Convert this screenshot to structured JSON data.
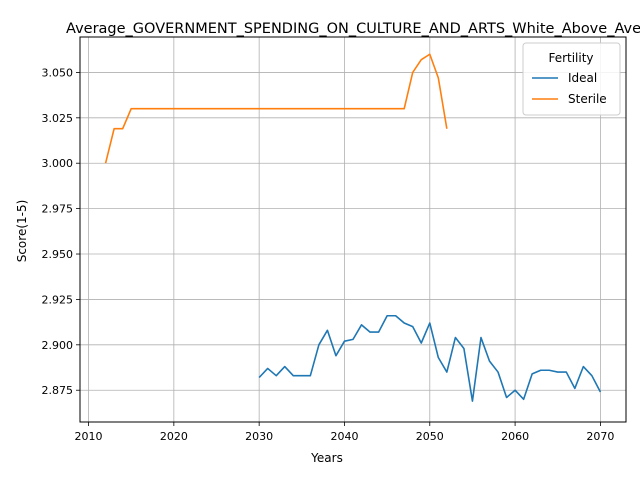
{
  "chart_data": {
    "type": "line",
    "title": "Average_GOVERNMENT_SPENDING_ON_CULTURE_AND_ARTS_White_Above_Average",
    "xlabel": "Years",
    "ylabel": "Score(1-5)",
    "xlim": [
      2009,
      2073
    ],
    "ylim": [
      2.8575,
      3.0695
    ],
    "xticks": [
      2010,
      2020,
      2030,
      2040,
      2050,
      2060,
      2070
    ],
    "yticks": [
      "2.875",
      "2.900",
      "2.925",
      "2.950",
      "2.975",
      "3.000",
      "3.025",
      "3.050"
    ],
    "grid": true,
    "legend": {
      "title": "Fertility",
      "position": "top-right"
    },
    "series": [
      {
        "name": "Ideal",
        "color": "#1f77b4",
        "x": [
          2030,
          2031,
          2032,
          2033,
          2034,
          2035,
          2036,
          2037,
          2038,
          2039,
          2040,
          2041,
          2042,
          2043,
          2044,
          2045,
          2046,
          2047,
          2048,
          2049,
          2050,
          2051,
          2052,
          2053,
          2054,
          2055,
          2056,
          2057,
          2058,
          2059,
          2060,
          2061,
          2062,
          2063,
          2064,
          2065,
          2066,
          2067,
          2068,
          2069,
          2070
        ],
        "values": [
          2.882,
          2.887,
          2.883,
          2.888,
          2.883,
          2.883,
          2.883,
          2.9,
          2.908,
          2.894,
          2.902,
          2.903,
          2.911,
          2.907,
          2.907,
          2.916,
          2.916,
          2.912,
          2.91,
          2.901,
          2.912,
          2.893,
          2.885,
          2.904,
          2.898,
          2.869,
          2.904,
          2.891,
          2.885,
          2.871,
          2.875,
          2.87,
          2.884,
          2.886,
          2.886,
          2.885,
          2.885,
          2.876,
          2.888,
          2.883,
          2.874
        ]
      },
      {
        "name": "Sterile",
        "color": "#ff7f0e",
        "x": [
          2012,
          2013,
          2014,
          2015,
          2016,
          2017,
          2018,
          2019,
          2020,
          2021,
          2022,
          2023,
          2024,
          2025,
          2026,
          2027,
          2028,
          2029,
          2030,
          2031,
          2032,
          2033,
          2034,
          2035,
          2036,
          2037,
          2038,
          2039,
          2040,
          2041,
          2042,
          2043,
          2044,
          2045,
          2046,
          2047,
          2048,
          2049,
          2050,
          2051,
          2052
        ],
        "values": [
          3.0,
          3.019,
          3.019,
          3.03,
          3.03,
          3.03,
          3.03,
          3.03,
          3.03,
          3.03,
          3.03,
          3.03,
          3.03,
          3.03,
          3.03,
          3.03,
          3.03,
          3.03,
          3.03,
          3.03,
          3.03,
          3.03,
          3.03,
          3.03,
          3.03,
          3.03,
          3.03,
          3.03,
          3.03,
          3.03,
          3.03,
          3.03,
          3.03,
          3.03,
          3.03,
          3.03,
          3.05,
          3.057,
          3.06,
          3.047,
          3.019
        ]
      }
    ]
  }
}
